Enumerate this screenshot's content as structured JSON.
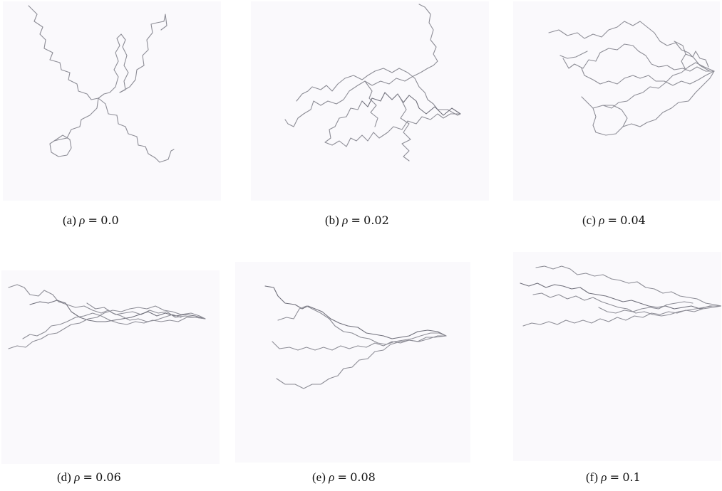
{
  "figure": {
    "panels": [
      {
        "tag": "(a)",
        "symbol": "ρ",
        "eq": "=",
        "value": "0.0"
      },
      {
        "tag": "(b)",
        "symbol": "ρ",
        "eq": "=",
        "value": "0.02"
      },
      {
        "tag": "(c)",
        "symbol": "ρ",
        "eq": "=",
        "value": "0.04"
      },
      {
        "tag": "(d)",
        "symbol": "ρ",
        "eq": "=",
        "value": "0.06"
      },
      {
        "tag": "(e)",
        "symbol": "ρ",
        "eq": "=",
        "value": "0.08"
      },
      {
        "tag": "(f)",
        "symbol": "ρ",
        "eq": "=",
        "value": "0.1"
      }
    ]
  }
}
